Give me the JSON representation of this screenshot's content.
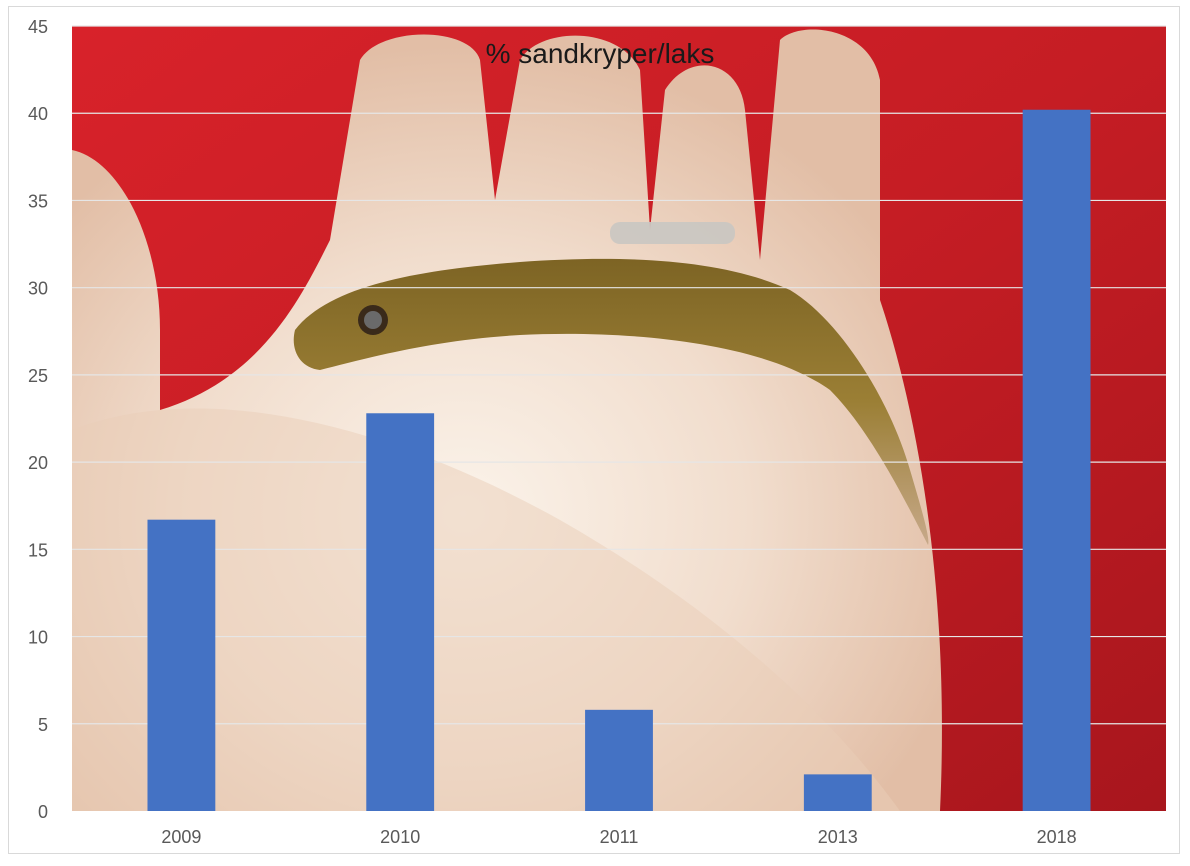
{
  "chart_data": {
    "type": "bar",
    "title": "% sandkryper/laks",
    "xlabel": "",
    "ylabel": "",
    "categories": [
      "2009",
      "2010",
      "2011",
      "2013",
      "2018"
    ],
    "values": [
      16.7,
      22.8,
      5.8,
      2.1,
      40.2
    ],
    "ylim": [
      0,
      45
    ],
    "yticks": [
      0,
      5,
      10,
      15,
      20,
      25,
      30,
      35,
      40,
      45
    ],
    "grid": true,
    "legend": "none",
    "colors": {
      "bar": "#4472c4",
      "grid": "#e6e6e6",
      "axis_text": "#595959",
      "title": "#1a1a1a"
    },
    "background_photo": "hand-holding-fish"
  }
}
